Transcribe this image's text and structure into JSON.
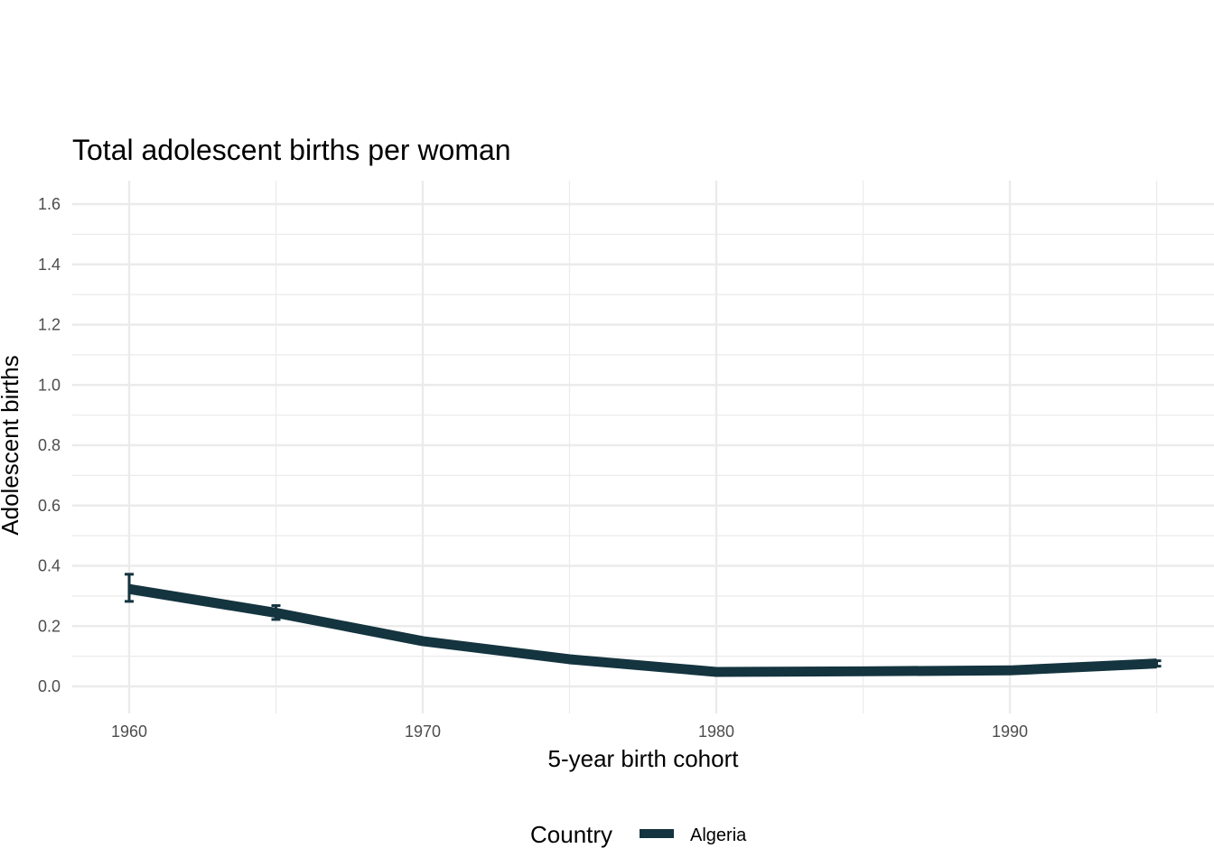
{
  "chart_data": {
    "type": "line",
    "title": "Total adolescent births per woman",
    "xlabel": "5-year birth cohort",
    "ylabel": "Adolescent births",
    "xlim": [
      1958,
      1997
    ],
    "ylim": [
      -0.1,
      1.68
    ],
    "x_ticks": [
      1960,
      1970,
      1980,
      1990
    ],
    "x_tick_labels": [
      "1960",
      "1970",
      "1980",
      "1990"
    ],
    "y_ticks": [
      0,
      0.2,
      0.4,
      0.6,
      0.8,
      1.0,
      1.2,
      1.4,
      1.6
    ],
    "y_tick_labels": [
      "0.0",
      "0.2",
      "0.4",
      "0.6",
      "0.8",
      "1.0",
      "1.2",
      "1.4",
      "1.6"
    ],
    "grid": true,
    "legend": {
      "title": "Country",
      "placement": "bottom"
    },
    "series": [
      {
        "name": "Algeria",
        "color": "#14343f",
        "x": [
          1960,
          1965,
          1970,
          1975,
          1980,
          1985,
          1990,
          1995
        ],
        "y": [
          0.323,
          0.244,
          0.15,
          0.09,
          0.048,
          0.05,
          0.053,
          0.076
        ],
        "error_low": [
          0.282,
          0.222,
          null,
          null,
          null,
          null,
          null,
          0.067
        ],
        "error_high": [
          0.372,
          0.268,
          null,
          null,
          null,
          null,
          null,
          0.085
        ]
      }
    ]
  }
}
